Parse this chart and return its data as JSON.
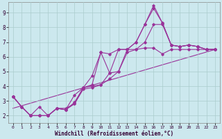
{
  "xlabel": "Windchill (Refroidissement éolien,°C)",
  "bg_color": "#cce8ee",
  "line_color": "#993399",
  "grid_color": "#aacccc",
  "xlim": [
    -0.5,
    23.5
  ],
  "ylim": [
    1.5,
    9.7
  ],
  "xticks": [
    0,
    1,
    2,
    3,
    4,
    5,
    6,
    7,
    8,
    9,
    10,
    11,
    12,
    13,
    14,
    15,
    16,
    17,
    18,
    19,
    20,
    21,
    22,
    23
  ],
  "yticks": [
    2,
    3,
    4,
    5,
    6,
    7,
    8,
    9
  ],
  "line1_x": [
    0,
    1,
    2,
    3,
    4,
    5,
    6,
    7,
    8,
    9,
    10,
    11,
    12,
    13,
    14,
    15,
    16,
    17,
    18,
    19,
    20,
    21,
    22,
    23
  ],
  "line1_y": [
    3.3,
    2.6,
    2.0,
    2.6,
    2.0,
    2.5,
    2.4,
    2.9,
    3.9,
    4.1,
    6.3,
    6.2,
    6.5,
    6.5,
    7.0,
    8.2,
    9.3,
    8.3,
    6.8,
    6.7,
    6.8,
    6.7,
    6.5,
    6.5
  ],
  "line2_x": [
    0,
    1,
    2,
    3,
    4,
    5,
    6,
    7,
    8,
    9,
    10,
    11,
    12,
    13,
    14,
    15,
    16,
    17,
    18,
    19,
    20,
    21,
    22,
    23
  ],
  "line2_y": [
    3.3,
    2.6,
    2.0,
    2.0,
    2.0,
    2.5,
    2.4,
    3.4,
    3.9,
    4.7,
    6.3,
    4.9,
    6.5,
    6.5,
    7.0,
    8.2,
    9.5,
    8.3,
    6.8,
    6.7,
    6.8,
    6.7,
    6.5,
    6.5
  ],
  "line3_x": [
    0,
    1,
    2,
    3,
    4,
    5,
    6,
    7,
    8,
    9,
    10,
    11,
    12,
    13,
    14,
    15,
    16,
    17,
    18,
    19,
    20,
    21,
    22,
    23
  ],
  "line3_y": [
    3.3,
    2.6,
    2.0,
    2.0,
    2.0,
    2.5,
    2.4,
    2.8,
    3.8,
    3.9,
    4.1,
    4.9,
    5.0,
    6.5,
    6.5,
    7.0,
    8.2,
    8.2,
    6.8,
    6.7,
    6.8,
    6.7,
    6.5,
    6.5
  ],
  "line4_x": [
    0,
    1,
    2,
    3,
    4,
    5,
    6,
    7,
    8,
    9,
    10,
    11,
    12,
    13,
    14,
    15,
    16,
    17,
    18,
    19,
    20,
    21,
    22,
    23
  ],
  "line4_y": [
    3.3,
    2.6,
    2.0,
    2.0,
    2.0,
    2.5,
    2.5,
    2.8,
    3.9,
    4.0,
    4.1,
    4.5,
    5.0,
    6.3,
    6.5,
    6.6,
    6.6,
    6.2,
    6.5,
    6.5,
    6.5,
    6.5,
    6.5,
    6.5
  ],
  "trend_x": [
    0,
    23
  ],
  "trend_y": [
    2.5,
    6.5
  ]
}
